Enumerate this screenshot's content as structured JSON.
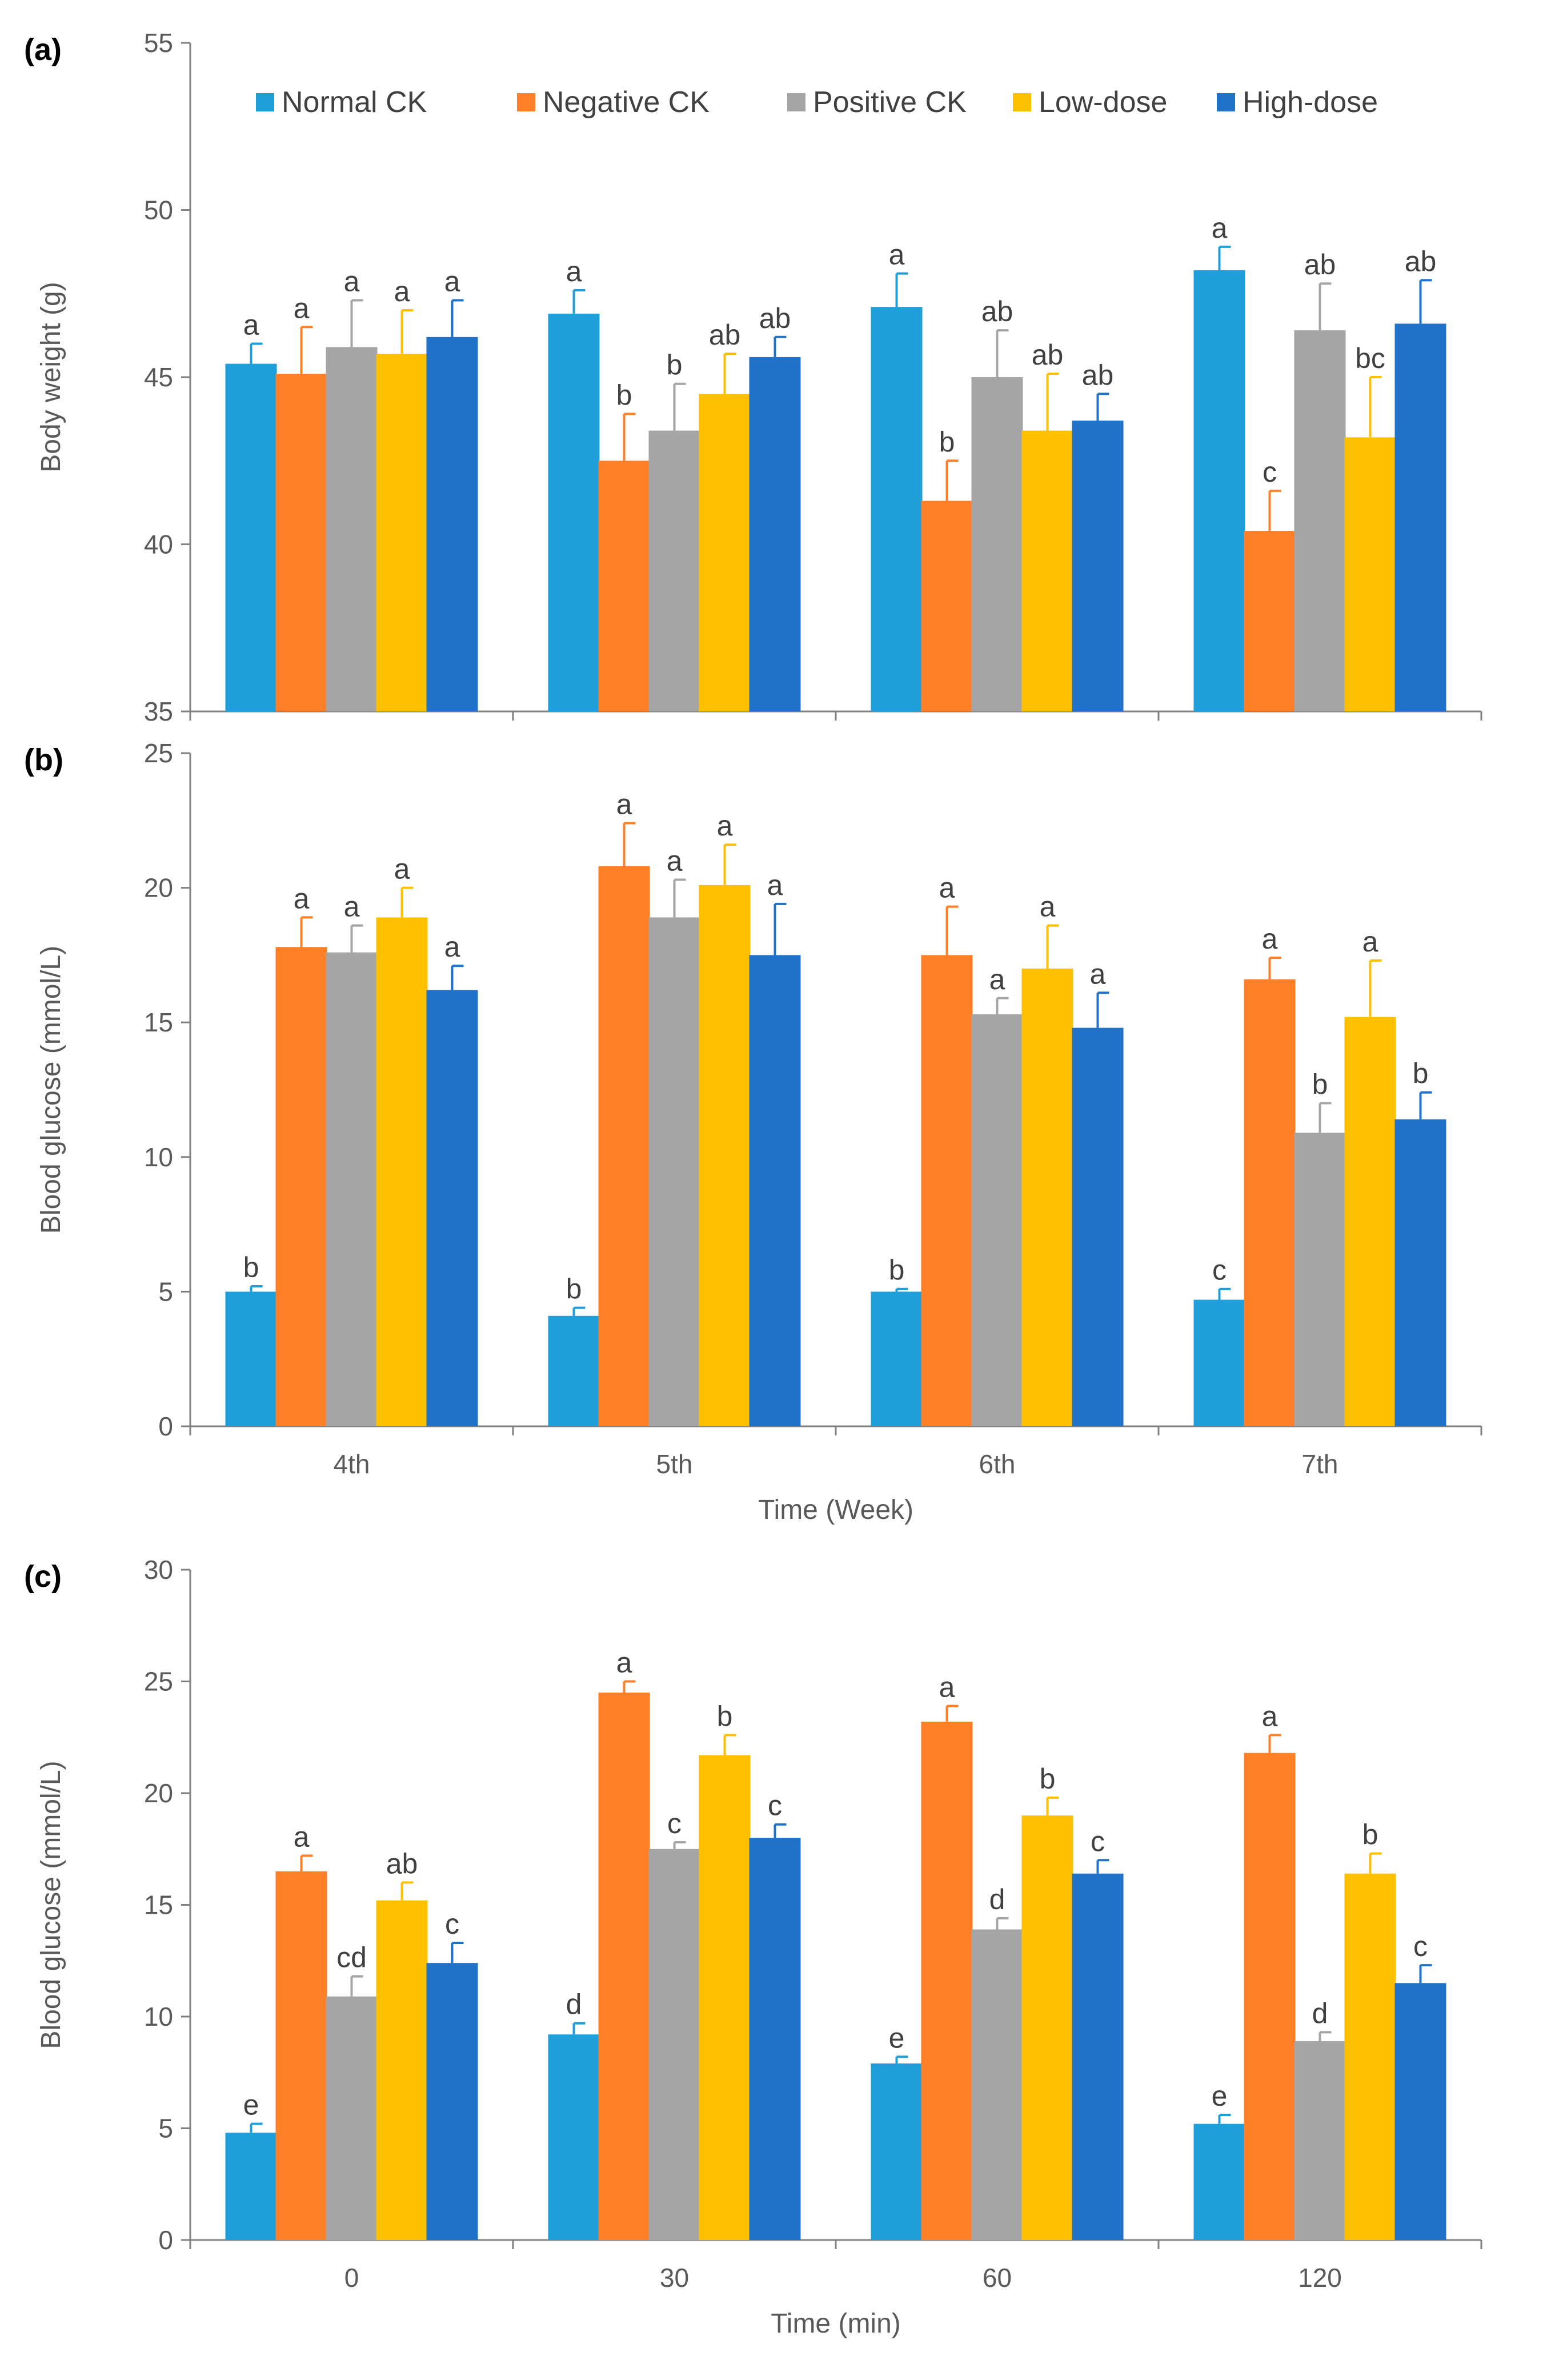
{
  "legend": [
    "Normal CK",
    "Negative CK",
    "Positive CK",
    "Low-dose",
    "High-dose"
  ],
  "colors": [
    "#1F9FDA",
    "#FF7F27",
    "#A5A5A5",
    "#FFC000",
    "#1F72C8"
  ],
  "chart_data": [
    {
      "type": "bar",
      "panel_label": "(a)",
      "ylabel": "Body weight (g)",
      "xlabel": "",
      "ylim": [
        35,
        55
      ],
      "yticks": [
        35,
        40,
        45,
        50,
        55
      ],
      "categories": [
        "4th",
        "5th",
        "6th",
        "7th"
      ],
      "show_category_labels": false,
      "series": [
        {
          "name": "Normal CK",
          "values": [
            45.4,
            46.9,
            47.1,
            48.2
          ],
          "errors": [
            0.6,
            0.7,
            1.0,
            0.7
          ],
          "letters": [
            "a",
            "a",
            "a",
            "a"
          ]
        },
        {
          "name": "Negative CK",
          "values": [
            45.1,
            42.5,
            41.3,
            40.4
          ],
          "errors": [
            1.4,
            1.4,
            1.2,
            1.2
          ],
          "letters": [
            "a",
            "b",
            "b",
            "c"
          ]
        },
        {
          "name": "Positive CK",
          "values": [
            45.9,
            43.4,
            45.0,
            46.4
          ],
          "errors": [
            1.4,
            1.4,
            1.4,
            1.4
          ],
          "letters": [
            "a",
            "b",
            "ab",
            "ab"
          ]
        },
        {
          "name": "Low-dose",
          "values": [
            45.7,
            44.5,
            43.4,
            43.2
          ],
          "errors": [
            1.3,
            1.2,
            1.7,
            1.8
          ],
          "letters": [
            "a",
            "ab",
            "ab",
            "bc"
          ]
        },
        {
          "name": "High-dose",
          "values": [
            46.2,
            45.6,
            43.7,
            46.6
          ],
          "errors": [
            1.1,
            0.6,
            0.8,
            1.3
          ],
          "letters": [
            "a",
            "ab",
            "ab",
            "ab"
          ]
        }
      ]
    },
    {
      "type": "bar",
      "panel_label": "(b)",
      "ylabel": "Blood glucose (mmol/L)",
      "xlabel": "Time (Week)",
      "ylim": [
        0,
        25
      ],
      "yticks": [
        0,
        5,
        10,
        15,
        20,
        25
      ],
      "categories": [
        "4th",
        "5th",
        "6th",
        "7th"
      ],
      "show_category_labels": true,
      "series": [
        {
          "name": "Normal CK",
          "values": [
            5.0,
            4.1,
            5.0,
            4.7
          ],
          "errors": [
            0.2,
            0.3,
            0.1,
            0.4
          ],
          "letters": [
            "b",
            "b",
            "b",
            "c"
          ]
        },
        {
          "name": "Negative CK",
          "values": [
            17.8,
            20.8,
            17.5,
            16.6
          ],
          "errors": [
            1.1,
            1.6,
            1.8,
            0.8
          ],
          "letters": [
            "a",
            "a",
            "a",
            "a"
          ]
        },
        {
          "name": "Positive CK",
          "values": [
            17.6,
            18.9,
            15.3,
            10.9
          ],
          "errors": [
            1.0,
            1.4,
            0.6,
            1.1
          ],
          "letters": [
            "a",
            "a",
            "a",
            "b"
          ]
        },
        {
          "name": "Low-dose",
          "values": [
            18.9,
            20.1,
            17.0,
            15.2
          ],
          "errors": [
            1.1,
            1.5,
            1.6,
            2.1
          ],
          "letters": [
            "a",
            "a",
            "a",
            "a"
          ]
        },
        {
          "name": "High-dose",
          "values": [
            16.2,
            17.5,
            14.8,
            11.4
          ],
          "errors": [
            0.9,
            1.9,
            1.3,
            1.0
          ],
          "letters": [
            "a",
            "a",
            "a",
            "b"
          ]
        }
      ]
    },
    {
      "type": "bar",
      "panel_label": "(c)",
      "ylabel": "Blood glucose (mmol/L)",
      "xlabel": "Time (min)",
      "ylim": [
        0,
        30
      ],
      "yticks": [
        0,
        5,
        10,
        15,
        20,
        25,
        30
      ],
      "categories": [
        "0",
        "30",
        "60",
        "120"
      ],
      "show_category_labels": true,
      "series": [
        {
          "name": "Normal CK",
          "values": [
            4.8,
            9.2,
            7.9,
            5.2
          ],
          "errors": [
            0.4,
            0.5,
            0.3,
            0.4
          ],
          "letters": [
            "e",
            "d",
            "e",
            "e"
          ]
        },
        {
          "name": "Negative CK",
          "values": [
            16.5,
            24.5,
            23.2,
            21.8
          ],
          "errors": [
            0.7,
            0.5,
            0.7,
            0.8
          ],
          "letters": [
            "a",
            "a",
            "a",
            "a"
          ]
        },
        {
          "name": "Positive CK",
          "values": [
            10.9,
            17.5,
            13.9,
            8.9
          ],
          "errors": [
            0.9,
            0.3,
            0.5,
            0.4
          ],
          "letters": [
            "cd",
            "c",
            "d",
            "d"
          ]
        },
        {
          "name": "Low-dose",
          "values": [
            15.2,
            21.7,
            19.0,
            16.4
          ],
          "errors": [
            0.8,
            0.9,
            0.8,
            0.9
          ],
          "letters": [
            "ab",
            "b",
            "b",
            "b"
          ]
        },
        {
          "name": "High-dose",
          "values": [
            12.4,
            18.0,
            16.4,
            11.5
          ],
          "errors": [
            0.9,
            0.6,
            0.6,
            0.8
          ],
          "letters": [
            "c",
            "c",
            "c",
            "c"
          ]
        }
      ]
    }
  ]
}
